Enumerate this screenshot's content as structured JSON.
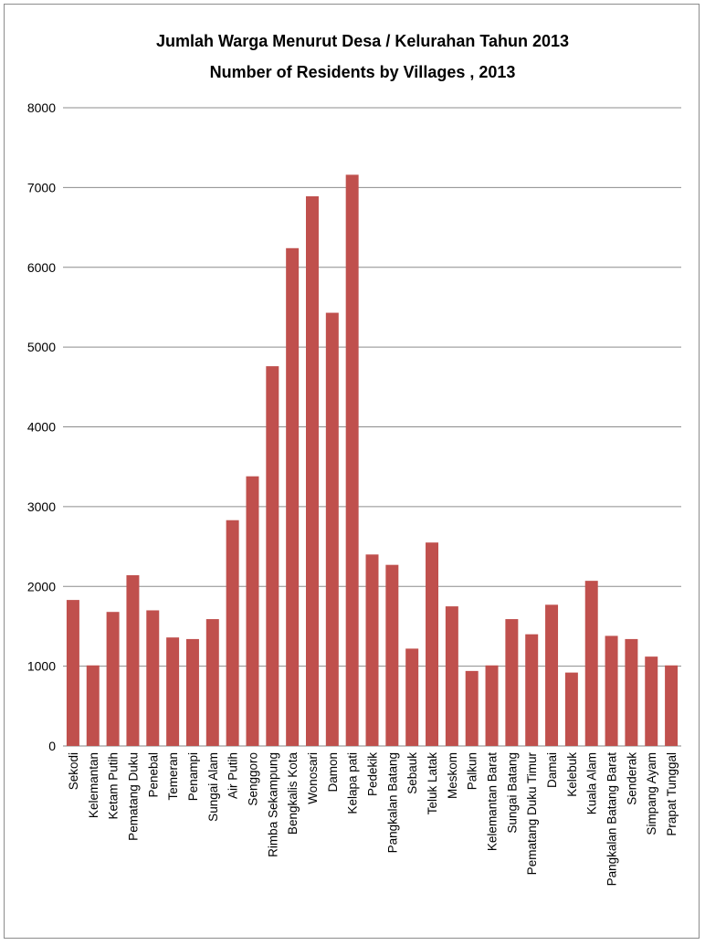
{
  "chart_data": {
    "type": "bar",
    "title": "Jumlah Warga Menurut Desa / Kelurahan Tahun 2013",
    "subtitle": "Number of Residents by Villages , 2013",
    "xlabel": "",
    "ylabel": "",
    "ylim": [
      0,
      8000
    ],
    "yticks": [
      0,
      1000,
      2000,
      3000,
      4000,
      5000,
      6000,
      7000,
      8000
    ],
    "grid": true,
    "legend": "none",
    "bar_color": "#c0504d",
    "categories": [
      "Sekodi",
      "Kelemantan",
      "Ketam Putih",
      "Pematang Duku",
      "Penebal",
      "Temeran",
      "Penampi",
      "Sungai Alam",
      "Air Putih",
      "Senggoro",
      "Rimba Sekampung",
      "Bengkalis Kota",
      "Wonosari",
      "Damon",
      "Kelapa pati",
      "Pedekik",
      "Pangkalan Batang",
      "Sebauk",
      "Teluk Latak",
      "Meskom",
      "Palkun",
      "Kelemantan Barat",
      "Sungai Batang",
      "Pematang Duku Timur",
      "Damai",
      "Kelebuk",
      "Kuala Alam",
      "Pangkalan Batang Barat",
      "Senderak",
      "Simpang Ayam",
      "Prapat Tunggal"
    ],
    "values": [
      1830,
      1010,
      1680,
      2140,
      1700,
      1360,
      1340,
      1590,
      2830,
      3380,
      4760,
      6240,
      6890,
      5430,
      7160,
      2400,
      2270,
      1220,
      2550,
      1750,
      940,
      1010,
      1590,
      1400,
      1770,
      920,
      2070,
      1380,
      1340,
      1120,
      1010
    ]
  }
}
